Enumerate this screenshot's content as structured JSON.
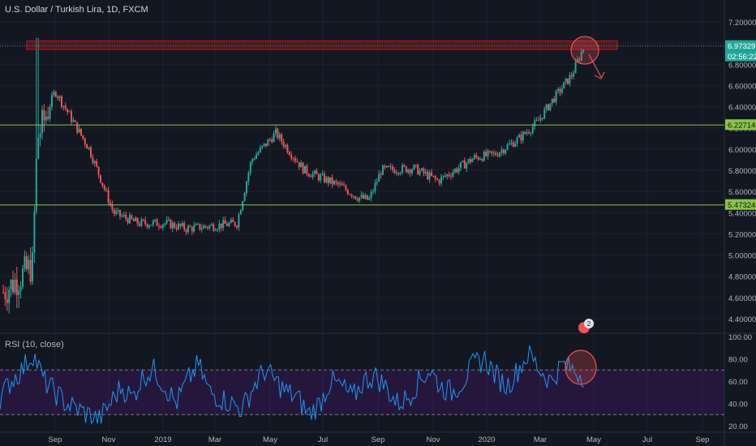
{
  "header": {
    "title": "U.S. Dollar / Turkish Lira, 1D, FXCM"
  },
  "rsi_panel": {
    "title": "RSI (10, close)"
  },
  "price_tags": {
    "last": "6.97329",
    "countdown": "02:56:22",
    "upper_level": "6.22714",
    "lower_level": "5.47324"
  },
  "badge": {
    "count": "2"
  },
  "colors": {
    "background": "#131722",
    "up": "#26a69a",
    "down": "#ef5350",
    "level_line": "#8bc34a",
    "rsi_line": "#2196f3",
    "rsi_band": "#6a1b9a"
  },
  "chart_data": [
    {
      "type": "candlestick",
      "title": "U.S. Dollar / Turkish Lira, 1D, FXCM",
      "x_ticks": [
        "Sep",
        "Nov",
        "2019",
        "Mar",
        "May",
        "Jul",
        "Sep",
        "Nov",
        "2020",
        "Mar",
        "May",
        "Jul",
        "Sep"
      ],
      "y_ticks": [
        "7.20000",
        "7.00000",
        "6.80000",
        "6.60000",
        "6.40000",
        "6.20000",
        "6.00000",
        "5.80000",
        "5.60000",
        "5.40000",
        "5.20000",
        "5.00000",
        "4.80000",
        "4.60000",
        "4.40000"
      ],
      "ylim": [
        4.3,
        7.32
      ],
      "series": [
        {
          "dates": [
            "2018-07",
            "2018-08-13",
            "2018-08-20",
            "2018-09",
            "2018-10",
            "2018-11",
            "2018-12",
            "2019-01",
            "2019-02",
            "2019-03-22",
            "2019-04",
            "2019-05-10",
            "2019-06",
            "2019-07",
            "2019-08-01",
            "2019-08-20",
            "2019-09",
            "2019-10",
            "2019-11",
            "2019-12",
            "2020-01",
            "2020-02",
            "2020-03-05",
            "2020-03-20",
            "2020-04-10",
            "2020-04-23"
          ],
          "close": [
            4.65,
            4.9,
            6.1,
            6.55,
            6.0,
            5.4,
            5.3,
            5.3,
            5.25,
            5.3,
            5.9,
            6.15,
            5.8,
            5.65,
            5.55,
            5.52,
            5.8,
            5.82,
            5.7,
            5.92,
            5.95,
            6.1,
            6.25,
            6.45,
            6.7,
            6.97
          ]
        }
      ],
      "levels": [
        {
          "price": 6.97329,
          "type": "resistance_zone"
        },
        {
          "price": 6.22714,
          "type": "horizontal_line"
        },
        {
          "price": 5.47324,
          "type": "horizontal_line"
        }
      ]
    },
    {
      "type": "line",
      "title": "RSI (10, close)",
      "y_ticks": [
        "100.00",
        "80.00",
        "60.00",
        "40.00",
        "20.00"
      ],
      "ylim": [
        20,
        100
      ],
      "bands": [
        70,
        30
      ],
      "series": [
        {
          "values": [
            45,
            60,
            70,
            85,
            60,
            50,
            40,
            35,
            30,
            25,
            40,
            55,
            45,
            65,
            70,
            55,
            40,
            60,
            75,
            50,
            45,
            40,
            35,
            55,
            70,
            60,
            50,
            45,
            30,
            40,
            60,
            55,
            45,
            60,
            65,
            55,
            40,
            45,
            60,
            70,
            55,
            50,
            60,
            75,
            80,
            65,
            55,
            70,
            85,
            70,
            60,
            75,
            70,
            65
          ]
        }
      ]
    }
  ]
}
